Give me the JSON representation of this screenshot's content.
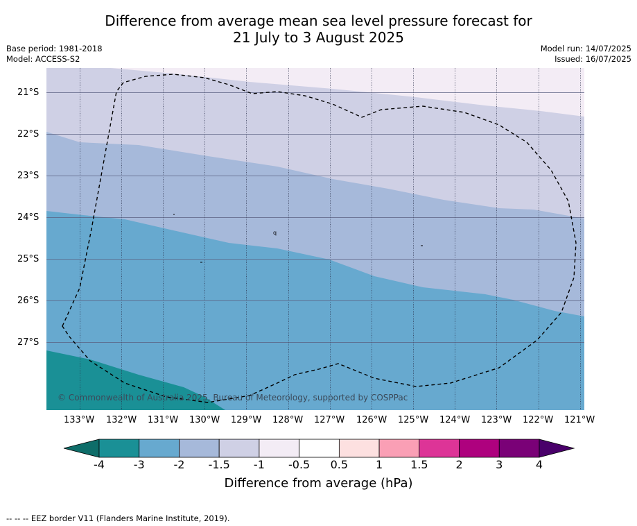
{
  "title": {
    "line1": "Difference from average mean sea level pressure forecast for",
    "line2": "21 July to 3 August 2025"
  },
  "meta": {
    "base_period": "Base period: 1981-2018",
    "model": "Model: ACCESS-S2",
    "model_run": "Model run: 14/07/2025",
    "issued": "Issued: 16/07/2025"
  },
  "map": {
    "lat_labels": [
      "21°S",
      "22°S",
      "23°S",
      "24°S",
      "25°S",
      "26°S",
      "27°S"
    ],
    "lon_labels": [
      "133°W",
      "132°W",
      "131°W",
      "130°W",
      "129°W",
      "128°W",
      "127°W",
      "126°W",
      "125°W",
      "124°W",
      "123°W",
      "122°W",
      "121°W"
    ],
    "copyright": "© Commonwealth of Australia 2025, Bureau of Meteorology, supported by COSPPac",
    "island_marks": [
      "q",
      "-",
      "-",
      "-"
    ]
  },
  "colorbar": {
    "ticks": [
      "-4",
      "-3",
      "-2",
      "-1.5",
      "-1",
      "-0.5",
      "0.5",
      "1",
      "1.5",
      "2",
      "3",
      "4"
    ],
    "colors": [
      "#0e6d69",
      "#1a9096",
      "#67a9cf",
      "#a6b9da",
      "#cfd0e5",
      "#f3ecf5",
      "#ffffff",
      "#fde0e0",
      "#fa9fb5",
      "#dd3497",
      "#ae017e",
      "#7a0177",
      "#49006a"
    ],
    "label": "Difference from average (hPa)"
  },
  "footer": "-- -- -- EEZ border V11 (Flanders Marine Institute, 2019)."
}
